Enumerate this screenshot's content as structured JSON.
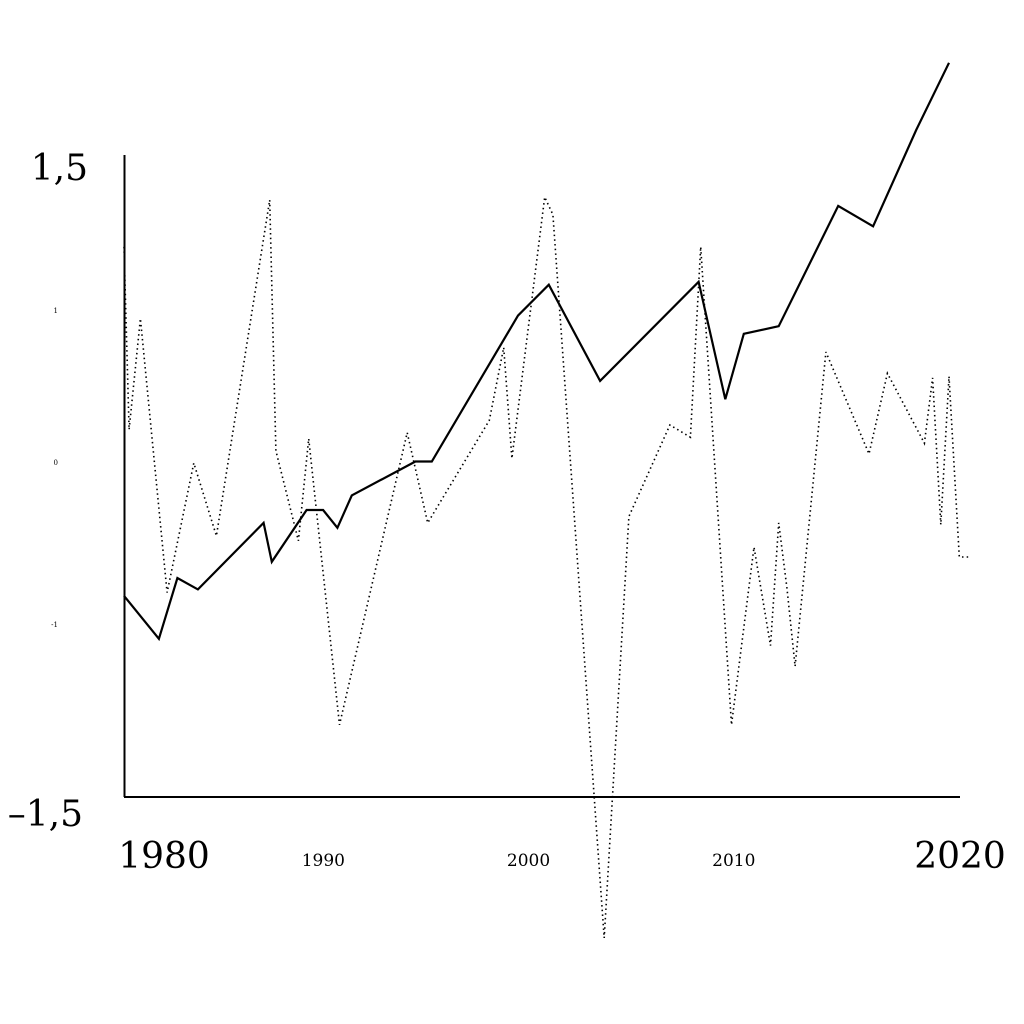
{
  "chart_data": {
    "type": "line",
    "title": "",
    "xlabel": "",
    "ylabel": "",
    "xlim": [
      1979.8,
      2020.5
    ],
    "ylim": [
      -1.5,
      1.5
    ],
    "grid": false,
    "legend": "none",
    "y_ticks": [
      {
        "value": 1.5,
        "label": "1,5",
        "size": "big"
      },
      {
        "value": 1,
        "label": "1",
        "size": "tiny"
      },
      {
        "value": 0,
        "label": "0",
        "size": "tiny"
      },
      {
        "value": -1,
        "label": "-1",
        "size": "tiny"
      },
      {
        "value": -1.5,
        "label": "–1,5",
        "size": "big"
      }
    ],
    "x_ticks": [
      {
        "value": 1980,
        "label": "1980",
        "size": "big"
      },
      {
        "value": 1990,
        "label": "1990",
        "size": "small"
      },
      {
        "value": 2000,
        "label": "2000",
        "size": "small"
      },
      {
        "value": 2010,
        "label": "2010",
        "size": "small"
      },
      {
        "value": 2020,
        "label": "2020",
        "size": "big"
      }
    ],
    "series": [
      {
        "style": "solid",
        "x": [
          1979.8,
          1981.5,
          1982.4,
          1983.4,
          1986.6,
          1987.0,
          1988.7,
          1989.5,
          1990.2,
          1990.9,
          1994.0,
          1994.8,
          1999.0,
          2000.5,
          2003.0,
          2007.8,
          2009.1,
          2010.0,
          2011.7,
          2014.6,
          2016.3,
          2018.4,
          2020.0
        ],
        "y": [
          -0.82,
          -1.04,
          -0.71,
          -0.78,
          -0.37,
          -0.61,
          -0.29,
          -0.29,
          -0.4,
          -0.2,
          0.01,
          0.01,
          0.97,
          1.09,
          0.54,
          1.1,
          0.42,
          0.85,
          0.9,
          1.36,
          1.29,
          1.62,
          1.85
        ]
      },
      {
        "style": "dotted",
        "x": [
          1979.8,
          1980.05,
          1980.6,
          1981.9,
          1983.2,
          1984.3,
          1986.9,
          1987.2,
          1988.3,
          1988.8,
          1990.3,
          1993.6,
          1994.6,
          1997.6,
          1998.3,
          1998.7,
          2000.3,
          2000.7,
          2003.2,
          2004.4,
          2006.4,
          2007.4,
          2007.9,
          2009.4,
          2010.5,
          2011.3,
          2011.7,
          2012.1,
          2012.5,
          2014.0,
          2016.1,
          2017.0,
          2018.8,
          2019.2,
          2019.6,
          2020.0,
          2020.5,
          2021.0
        ],
        "y": [
          1.22,
          0.22,
          0.95,
          -0.8,
          0.0,
          -0.45,
          1.38,
          0.08,
          -0.48,
          0.16,
          -1.29,
          0.2,
          -0.37,
          0.28,
          0.76,
          0.03,
          1.39,
          1.33,
          -1.91,
          -0.33,
          0.25,
          0.17,
          1.22,
          -1.29,
          -0.52,
          -1.06,
          -0.37,
          -0.77,
          -1.12,
          0.73,
          0.06,
          0.59,
          0.13,
          0.56,
          -0.38,
          0.57,
          -0.58,
          -0.58
        ]
      }
    ]
  }
}
